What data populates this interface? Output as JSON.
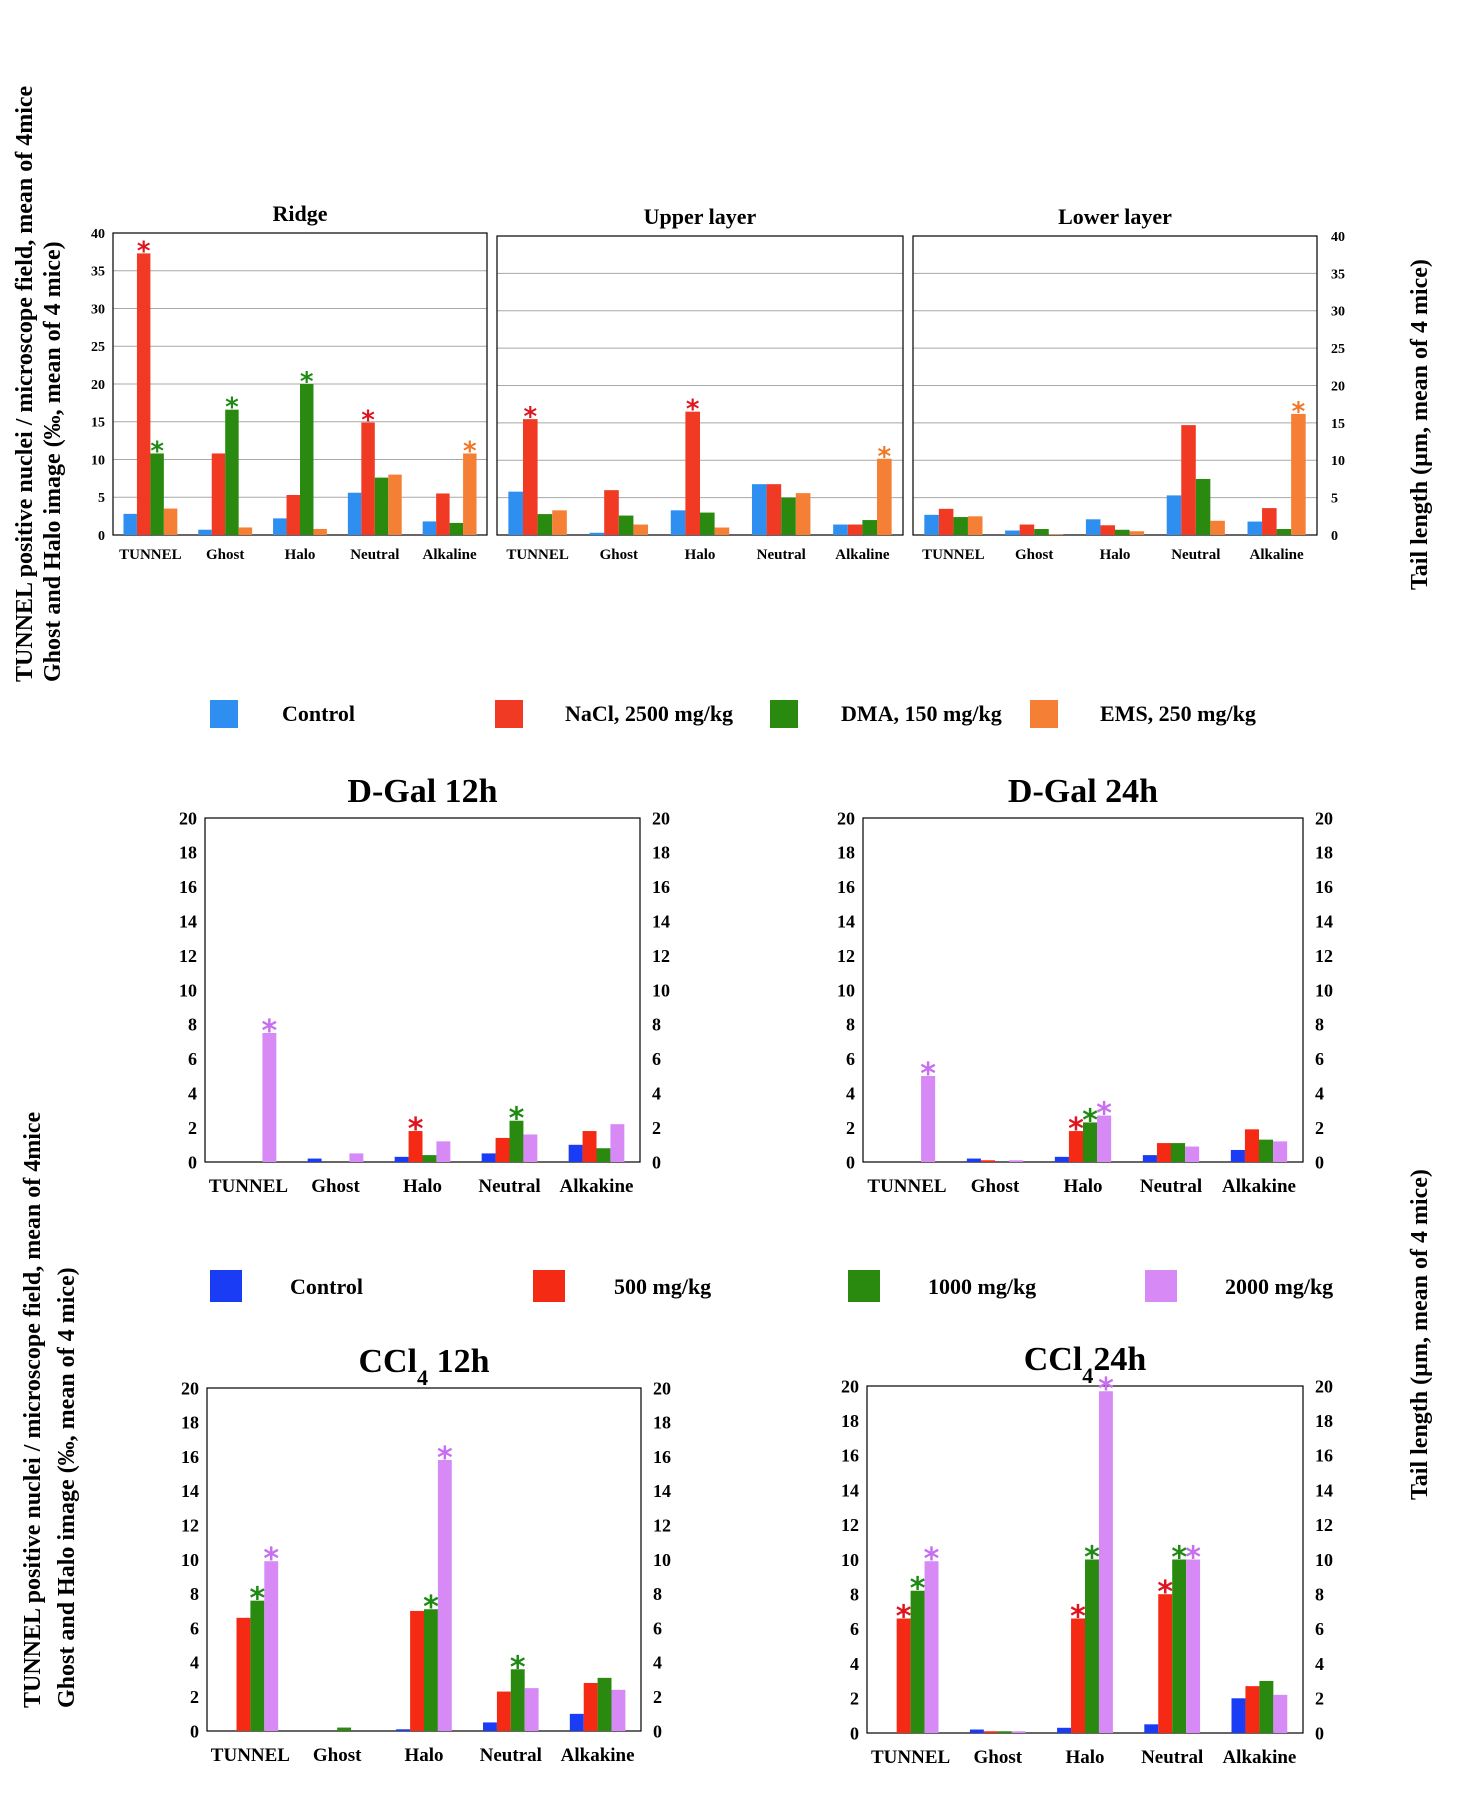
{
  "top_ylabel_left": [
    "TUNNEL positive nuclei / microscope field, mean of 4mice",
    "Ghost and Halo  image (‰, mean of 4 mice)"
  ],
  "top_ylabel_right": "Tail length (µm, mean of 4 mice)",
  "bottom_ylabel_left": [
    "TUNNEL positive nuclei / microscope field, mean of 4mice",
    "Ghost and Halo  image (‰, mean of 4 mice)"
  ],
  "bottom_ylabel_right": "Tail length (µm, mean of 4 mice)",
  "legend_top": [
    {
      "label": "Control",
      "color": "#2f8ff0"
    },
    {
      "label": "NaCl, 2500 mg/kg",
      "color": "#f03a24"
    },
    {
      "label": "DMA, 150 mg/kg",
      "color": "#2a8a10"
    },
    {
      "label": "EMS, 250 mg/kg",
      "color": "#f58035"
    }
  ],
  "legend_bottom": [
    {
      "label": "Control",
      "color": "#1a3cf5"
    },
    {
      "label": "500 mg/kg",
      "color": "#f52a14"
    },
    {
      "label": "1000 mg/kg",
      "color": "#2a8a10"
    },
    {
      "label": "2000 mg/kg",
      "color": "#d78af5"
    }
  ],
  "star_colors": {
    "red": "#e0141e",
    "green": "#1e8a14",
    "orange": "#f07828",
    "purple": "#c86ef0"
  },
  "chart_data": [
    {
      "type": "bar",
      "title": "Ridge",
      "categories": [
        "TUNNEL",
        "Ghost",
        "Halo",
        "Neutral",
        "Alkaline"
      ],
      "ylim": [
        0,
        40
      ],
      "yticks": [
        0,
        5,
        10,
        15,
        20,
        25,
        30,
        35,
        40
      ],
      "grid": true,
      "series": [
        {
          "name": "Control",
          "values": [
            2.8,
            0.7,
            2.2,
            5.6,
            1.8
          ]
        },
        {
          "name": "NaCl, 2500 mg/kg",
          "values": [
            37.3,
            10.8,
            5.3,
            14.9,
            5.5
          ]
        },
        {
          "name": "DMA, 150 mg/kg",
          "values": [
            10.8,
            16.6,
            20.0,
            7.6,
            1.6
          ]
        },
        {
          "name": "EMS, 250 mg/kg",
          "values": [
            3.5,
            1.0,
            0.8,
            8.0,
            10.8
          ]
        }
      ],
      "stars": [
        [
          0,
          1,
          "red"
        ],
        [
          0,
          2,
          "green"
        ],
        [
          1,
          2,
          "green"
        ],
        [
          2,
          2,
          "green"
        ],
        [
          3,
          1,
          "red"
        ],
        [
          4,
          3,
          "orange"
        ]
      ]
    },
    {
      "type": "bar",
      "title": "Upper layer",
      "categories": [
        "TUNNEL",
        "Ghost",
        "Halo",
        "Neutral",
        "Alkaline"
      ],
      "ylim": [
        0,
        40
      ],
      "yticks": [
        0,
        5,
        10,
        15,
        20,
        25,
        30,
        35,
        40
      ],
      "grid": true,
      "series": [
        {
          "name": "Control",
          "values": [
            5.8,
            0.3,
            3.3,
            6.8,
            1.4
          ]
        },
        {
          "name": "NaCl, 2500 mg/kg",
          "values": [
            15.5,
            6.0,
            16.5,
            6.8,
            1.4
          ]
        },
        {
          "name": "DMA, 150 mg/kg",
          "values": [
            2.8,
            2.6,
            3.0,
            5.0,
            2.0
          ]
        },
        {
          "name": "EMS, 250 mg/kg",
          "values": [
            3.3,
            1.4,
            1.0,
            5.6,
            10.2
          ]
        }
      ],
      "stars": [
        [
          0,
          1,
          "red"
        ],
        [
          2,
          1,
          "red"
        ],
        [
          4,
          3,
          "orange"
        ]
      ]
    },
    {
      "type": "bar",
      "title": "Lower layer",
      "categories": [
        "TUNNEL",
        "Ghost",
        "Halo",
        "Neutral",
        "Alkaline"
      ],
      "ylim": [
        0,
        40
      ],
      "yticks": [
        0,
        5,
        10,
        15,
        20,
        25,
        30,
        35,
        40
      ],
      "grid": true,
      "series": [
        {
          "name": "Control",
          "values": [
            2.7,
            0.6,
            2.1,
            5.3,
            1.8
          ]
        },
        {
          "name": "NaCl, 2500 mg/kg",
          "values": [
            3.5,
            1.4,
            1.3,
            14.7,
            3.6
          ]
        },
        {
          "name": "DMA, 150 mg/kg",
          "values": [
            2.4,
            0.8,
            0.7,
            7.5,
            0.8
          ]
        },
        {
          "name": "EMS, 250 mg/kg",
          "values": [
            2.5,
            0.1,
            0.5,
            1.9,
            16.2
          ]
        }
      ],
      "stars": [
        [
          4,
          3,
          "orange"
        ]
      ]
    },
    {
      "type": "bar",
      "title": "D-Gal  12h",
      "categories": [
        "TUNNEL",
        "Ghost",
        "Halo",
        "Neutral",
        "Alkakine"
      ],
      "ylim": [
        0,
        20
      ],
      "yticks": [
        0,
        2,
        4,
        6,
        8,
        10,
        12,
        14,
        16,
        18,
        20
      ],
      "grid": false,
      "series": [
        {
          "name": "Control",
          "values": [
            0,
            0.2,
            0.3,
            0.5,
            1.0
          ]
        },
        {
          "name": "500 mg/kg",
          "values": [
            0,
            0,
            1.8,
            1.4,
            1.8
          ]
        },
        {
          "name": "1000 mg/kg",
          "values": [
            0,
            0,
            0.4,
            2.4,
            0.8
          ]
        },
        {
          "name": "2000 mg/kg",
          "values": [
            7.5,
            0.5,
            1.2,
            1.6,
            2.2
          ]
        }
      ],
      "stars": [
        [
          0,
          3,
          "purple"
        ],
        [
          2,
          1,
          "red"
        ],
        [
          3,
          2,
          "green"
        ]
      ]
    },
    {
      "type": "bar",
      "title": "D-Gal  24h",
      "categories": [
        "TUNNEL",
        "Ghost",
        "Halo",
        "Neutral",
        "Alkakine"
      ],
      "ylim": [
        0,
        20
      ],
      "yticks": [
        0,
        2,
        4,
        6,
        8,
        10,
        12,
        14,
        16,
        18,
        20
      ],
      "grid": false,
      "series": [
        {
          "name": "Control",
          "values": [
            0,
            0.2,
            0.3,
            0.4,
            0.7
          ]
        },
        {
          "name": "500 mg/kg",
          "values": [
            0,
            0.1,
            1.8,
            1.1,
            1.9
          ]
        },
        {
          "name": "1000 mg/kg",
          "values": [
            0,
            0,
            2.3,
            1.1,
            1.3
          ]
        },
        {
          "name": "2000 mg/kg",
          "values": [
            5.0,
            0.1,
            2.7,
            0.9,
            1.2
          ]
        }
      ],
      "stars": [
        [
          0,
          3,
          "purple"
        ],
        [
          2,
          1,
          "red"
        ],
        [
          2,
          2,
          "green"
        ],
        [
          2,
          3,
          "purple"
        ]
      ]
    },
    {
      "type": "bar",
      "title": "CCl",
      "title_sub": "4",
      "title_after": " 12h",
      "categories": [
        "TUNNEL",
        "Ghost",
        "Halo",
        "Neutral",
        "Alkakine"
      ],
      "ylim": [
        0,
        20
      ],
      "yticks": [
        0,
        2,
        4,
        6,
        8,
        10,
        12,
        14,
        16,
        18,
        20
      ],
      "grid": false,
      "series": [
        {
          "name": "Control",
          "values": [
            0,
            0,
            0.1,
            0.5,
            1.0
          ]
        },
        {
          "name": "500 mg/kg",
          "values": [
            6.6,
            0,
            7.0,
            2.3,
            2.8
          ]
        },
        {
          "name": "1000 mg/kg",
          "values": [
            7.6,
            0.2,
            7.1,
            3.6,
            3.1
          ]
        },
        {
          "name": "2000 mg/kg",
          "values": [
            9.9,
            0,
            15.8,
            2.5,
            2.4
          ]
        }
      ],
      "stars": [
        [
          0,
          2,
          "green"
        ],
        [
          0,
          3,
          "purple"
        ],
        [
          2,
          2,
          "green"
        ],
        [
          2,
          3,
          "purple"
        ],
        [
          3,
          2,
          "green"
        ]
      ]
    },
    {
      "type": "bar",
      "title": "CCl",
      "title_sub": "4",
      "title_after": "24h",
      "categories": [
        "TUNNEL",
        "Ghost",
        "Halo",
        "Neutral",
        "Alkakine"
      ],
      "ylim": [
        0,
        20
      ],
      "yticks": [
        0,
        2,
        4,
        6,
        8,
        10,
        12,
        14,
        16,
        18,
        20
      ],
      "grid": false,
      "series": [
        {
          "name": "Control",
          "values": [
            0,
            0.2,
            0.3,
            0.5,
            2.0
          ]
        },
        {
          "name": "500 mg/kg",
          "values": [
            6.6,
            0.1,
            6.6,
            8.0,
            2.7
          ]
        },
        {
          "name": "1000 mg/kg",
          "values": [
            8.2,
            0.1,
            10.0,
            10.0,
            3.0
          ]
        },
        {
          "name": "2000 mg/kg",
          "values": [
            9.9,
            0.1,
            19.7,
            10.0,
            2.2
          ]
        }
      ],
      "stars": [
        [
          0,
          1,
          "red"
        ],
        [
          0,
          2,
          "green"
        ],
        [
          0,
          3,
          "purple"
        ],
        [
          2,
          1,
          "red"
        ],
        [
          2,
          2,
          "green"
        ],
        [
          2,
          3,
          "purple"
        ],
        [
          3,
          1,
          "red"
        ],
        [
          3,
          2,
          "green"
        ],
        [
          3,
          3,
          "purple"
        ]
      ]
    }
  ]
}
